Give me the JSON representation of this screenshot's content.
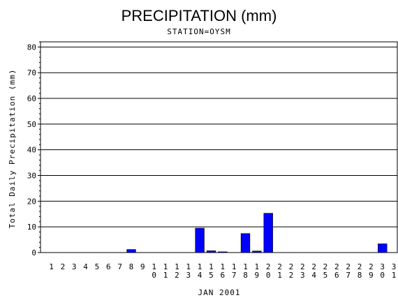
{
  "chart_data": {
    "type": "bar",
    "title": "PRECIPITATION (mm)",
    "subtitle": "STATION=OYSM",
    "xlabel": "JAN 2001",
    "ylabel": "Total Daily Precipitation (mm)",
    "ylim": [
      0,
      82
    ],
    "yticks": [
      0,
      10,
      20,
      30,
      40,
      50,
      60,
      70,
      80
    ],
    "grid": true,
    "categories": [
      "1",
      "2",
      "3",
      "4",
      "5",
      "6",
      "7",
      "8",
      "9",
      "10",
      "11",
      "12",
      "13",
      "14",
      "15",
      "16",
      "17",
      "18",
      "19",
      "20",
      "21",
      "22",
      "23",
      "24",
      "25",
      "26",
      "27",
      "28",
      "29",
      "30",
      "31"
    ],
    "values": [
      0,
      0,
      0,
      0,
      0,
      0,
      0,
      1.2,
      0,
      0,
      0,
      0,
      0,
      9.5,
      0.7,
      0.3,
      0,
      7.4,
      0.6,
      15.3,
      0,
      0,
      0,
      0,
      0,
      0,
      0,
      0,
      0,
      3.4,
      0
    ],
    "colors": {
      "bar": "#0000ff",
      "grid": "#000000",
      "axis": "#000000"
    }
  }
}
